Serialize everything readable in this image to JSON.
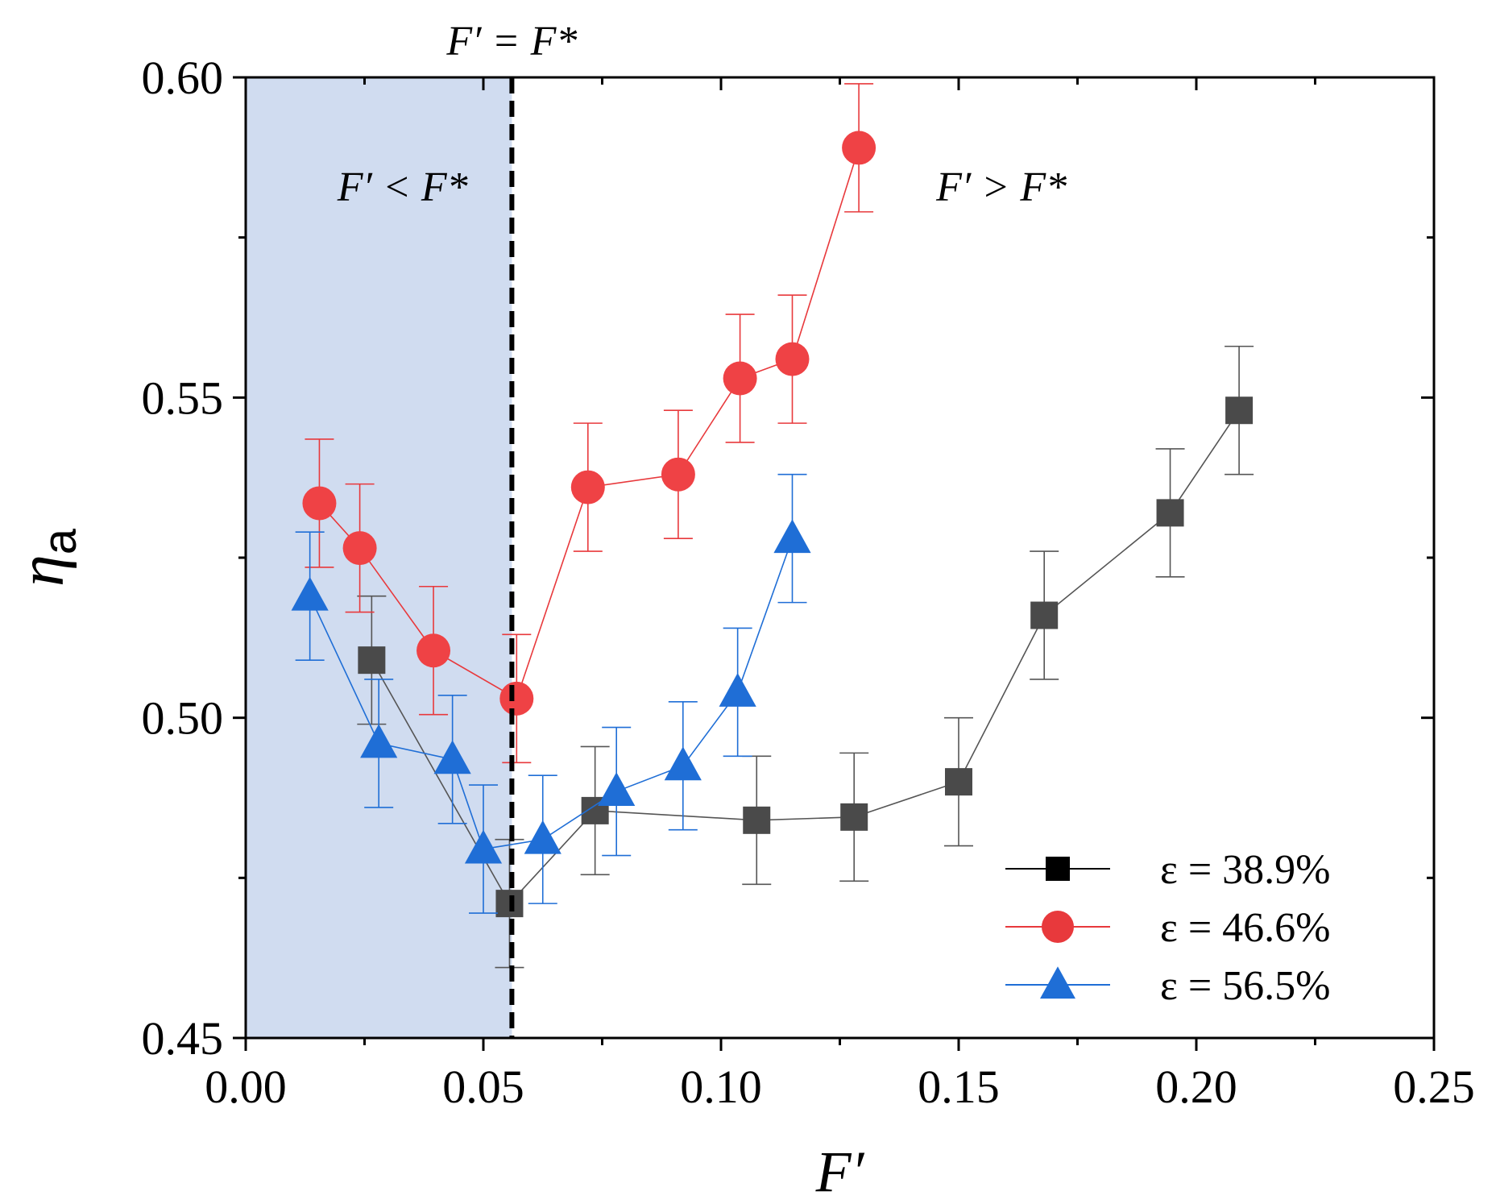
{
  "chart_data": {
    "type": "scatter",
    "title": "",
    "xlabel": "F′",
    "ylabel": "η",
    "ylabel_subscript": "a",
    "xlim": [
      0.0,
      0.25
    ],
    "ylim": [
      0.45,
      0.6
    ],
    "xticks": [
      0.0,
      0.05,
      0.1,
      0.15,
      0.2,
      0.25
    ],
    "xtick_labels": [
      "0.00",
      "0.05",
      "0.10",
      "0.15",
      "0.20",
      "0.25"
    ],
    "yticks": [
      0.45,
      0.5,
      0.55,
      0.6
    ],
    "ytick_labels": [
      "0.45",
      "0.50",
      "0.55",
      "0.60"
    ],
    "grid": false,
    "legend_position": "bottom-right",
    "critical_line": {
      "x": 0.056,
      "label": "F′ = F*"
    },
    "shaded_region": {
      "x_from": 0.0,
      "x_to": 0.056,
      "color": "#d0dcf0"
    },
    "annotations": [
      {
        "text": "F′ < F*",
        "x": 0.033,
        "y": 0.583
      },
      {
        "text": "F′ > F*",
        "x": 0.159,
        "y": 0.583
      }
    ],
    "series": [
      {
        "name": "ε = 38.9%",
        "legend_color": "#000000",
        "color": "#4a4a4a",
        "line_color": "#555555",
        "marker": "square",
        "x": [
          0.0265,
          0.0555,
          0.0735,
          0.1075,
          0.128,
          0.15,
          0.168,
          0.1945,
          0.209
        ],
        "y": [
          0.509,
          0.471,
          0.4855,
          0.484,
          0.4845,
          0.49,
          0.516,
          0.532,
          0.548
        ],
        "yerr": [
          0.01,
          0.01,
          0.01,
          0.01,
          0.01,
          0.01,
          0.01,
          0.01,
          0.01
        ]
      },
      {
        "name": "ε = 46.6%",
        "legend_color": "#e8393c",
        "color": "#ef4245",
        "line_color": "#e8393c",
        "marker": "circle",
        "x": [
          0.0155,
          0.024,
          0.0395,
          0.057,
          0.072,
          0.091,
          0.104,
          0.115,
          0.129
        ],
        "y": [
          0.5335,
          0.5265,
          0.5105,
          0.503,
          0.536,
          0.538,
          0.553,
          0.556,
          0.589
        ],
        "yerr": [
          0.01,
          0.01,
          0.01,
          0.01,
          0.01,
          0.01,
          0.01,
          0.01,
          0.01
        ]
      },
      {
        "name": "ε = 56.5%",
        "legend_color": "#1f6ed6",
        "color": "#1f6ed6",
        "line_color": "#1f6ed6",
        "marker": "triangle",
        "x": [
          0.0135,
          0.028,
          0.0435,
          0.05,
          0.0625,
          0.078,
          0.092,
          0.1035,
          0.115
        ],
        "y": [
          0.519,
          0.496,
          0.4935,
          0.4795,
          0.481,
          0.4885,
          0.4925,
          0.504,
          0.528
        ],
        "yerr": [
          0.01,
          0.01,
          0.01,
          0.01,
          0.01,
          0.01,
          0.01,
          0.01,
          0.01
        ]
      }
    ]
  }
}
